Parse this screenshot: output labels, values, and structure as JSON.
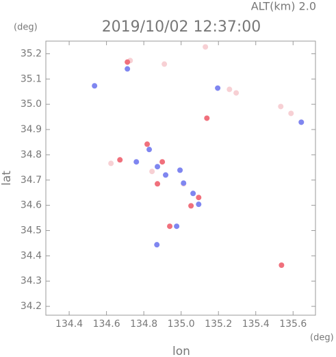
{
  "chart_data": {
    "type": "scatter",
    "title": "2019/10/02 12:37:00",
    "subtitle": "ALT(km) 2.0",
    "x_label": "lon",
    "y_label": "lat",
    "x_unit": "(deg)",
    "y_unit": "(deg)",
    "xlim": [
      134.275,
      135.72
    ],
    "ylim": [
      34.165,
      35.25
    ],
    "xticks": [
      134.4,
      134.6,
      134.8,
      {
        "value": 135.0,
        "label": "135.0"
      },
      135.2,
      135.4,
      135.6
    ],
    "yticks": [
      34.2,
      34.3,
      34.4,
      34.5,
      34.6,
      34.7,
      34.8,
      34.9,
      {
        "value": 35.0,
        "label": "35.0"
      },
      35.1,
      35.2
    ],
    "series": [
      {
        "color": "#f7d0d4",
        "x": [
          135.534,
          135.589,
          135.644,
          135.259,
          135.295,
          135.13,
          134.727,
          134.91,
          134.624,
          135.013,
          134.844
        ],
        "values": [
          34.991,
          34.964,
          34.929,
          35.059,
          35.045,
          35.227,
          35.173,
          35.159,
          34.766,
          34.685,
          34.734
        ]
      },
      {
        "color": "#7f86f0",
        "x": [
          134.536,
          134.712,
          134.873,
          134.829,
          134.917,
          134.994,
          135.064,
          135.094,
          134.976,
          134.76,
          135.013,
          135.644,
          135.196,
          134.87
        ],
        "values": [
          35.073,
          35.14,
          34.753,
          34.821,
          34.72,
          34.739,
          34.647,
          34.604,
          34.517,
          34.772,
          34.688,
          34.929,
          35.064,
          34.444
        ]
      },
      {
        "color": "#f0707c",
        "x": [
          135.138,
          135.538,
          134.939,
          134.873,
          134.818,
          134.899,
          135.094,
          134.712,
          135.053,
          134.672
        ],
        "values": [
          34.945,
          34.363,
          34.517,
          34.685,
          34.842,
          34.772,
          34.631,
          35.167,
          34.598,
          34.78
        ]
      }
    ]
  }
}
